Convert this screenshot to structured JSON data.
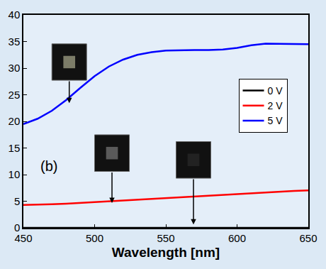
{
  "chart_data": {
    "type": "line",
    "x_label": "Wavelength [nm]",
    "x": [
      450,
      460,
      470,
      480,
      490,
      500,
      510,
      520,
      530,
      540,
      550,
      560,
      570,
      580,
      590,
      600,
      610,
      620,
      630,
      640,
      650
    ],
    "series": [
      {
        "name": "0 V",
        "color": "#000000",
        "values": [
          0,
          0,
          0,
          0,
          0,
          0,
          0,
          0,
          0,
          0,
          0,
          0,
          0,
          0,
          0,
          0,
          0,
          0,
          0,
          0,
          0
        ]
      },
      {
        "name": "2 V",
        "color": "#ff0000",
        "values": [
          4.3,
          4.35,
          4.45,
          4.55,
          4.7,
          4.85,
          5.0,
          5.15,
          5.3,
          5.5,
          5.65,
          5.8,
          5.95,
          6.1,
          6.25,
          6.4,
          6.55,
          6.7,
          6.8,
          6.95,
          7.05
        ]
      },
      {
        "name": "5 V",
        "color": "#0000ff",
        "values": [
          19.5,
          20.5,
          22,
          24,
          26.3,
          28.5,
          30.3,
          31.6,
          32.5,
          33,
          33.3,
          33.4,
          33.4,
          33.4,
          33.5,
          33.8,
          34.3,
          34.6,
          34.6,
          34.5,
          34.5
        ]
      }
    ],
    "xlim": [
      450,
      650
    ],
    "xticks": [
      450,
      500,
      550,
      600,
      650
    ],
    "ylim": [
      0,
      40
    ],
    "yticks": [
      0,
      5,
      10,
      15,
      20,
      25,
      30,
      35,
      40
    ],
    "annotations": [
      "(b)"
    ],
    "grid": false,
    "legend": "right"
  }
}
